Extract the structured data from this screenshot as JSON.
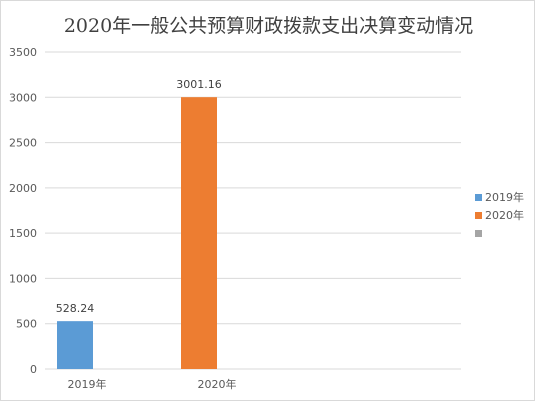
{
  "title": "2020年一般公共预算财政拨款支出决算变动情况",
  "chart_data": {
    "type": "bar",
    "title": "2020年一般公共预算财政拨款支出决算变动情况",
    "categories": [
      "2019年",
      "2020年"
    ],
    "series": [
      {
        "name": "2019年",
        "color": "#5b9bd5",
        "values": [
          528.24,
          null
        ]
      },
      {
        "name": "2020年",
        "color": "#ed7d31",
        "values": [
          null,
          3001.16
        ]
      },
      {
        "name": "",
        "color": "#a5a5a5",
        "values": [
          null,
          null
        ]
      }
    ],
    "data_labels": [
      "528.24",
      "3001.16"
    ],
    "ylim": [
      0,
      3500
    ],
    "yticks": [
      "0",
      "500",
      "1000",
      "1500",
      "2000",
      "2500",
      "3000",
      "3500"
    ],
    "grid": true,
    "legend_position": "right"
  }
}
